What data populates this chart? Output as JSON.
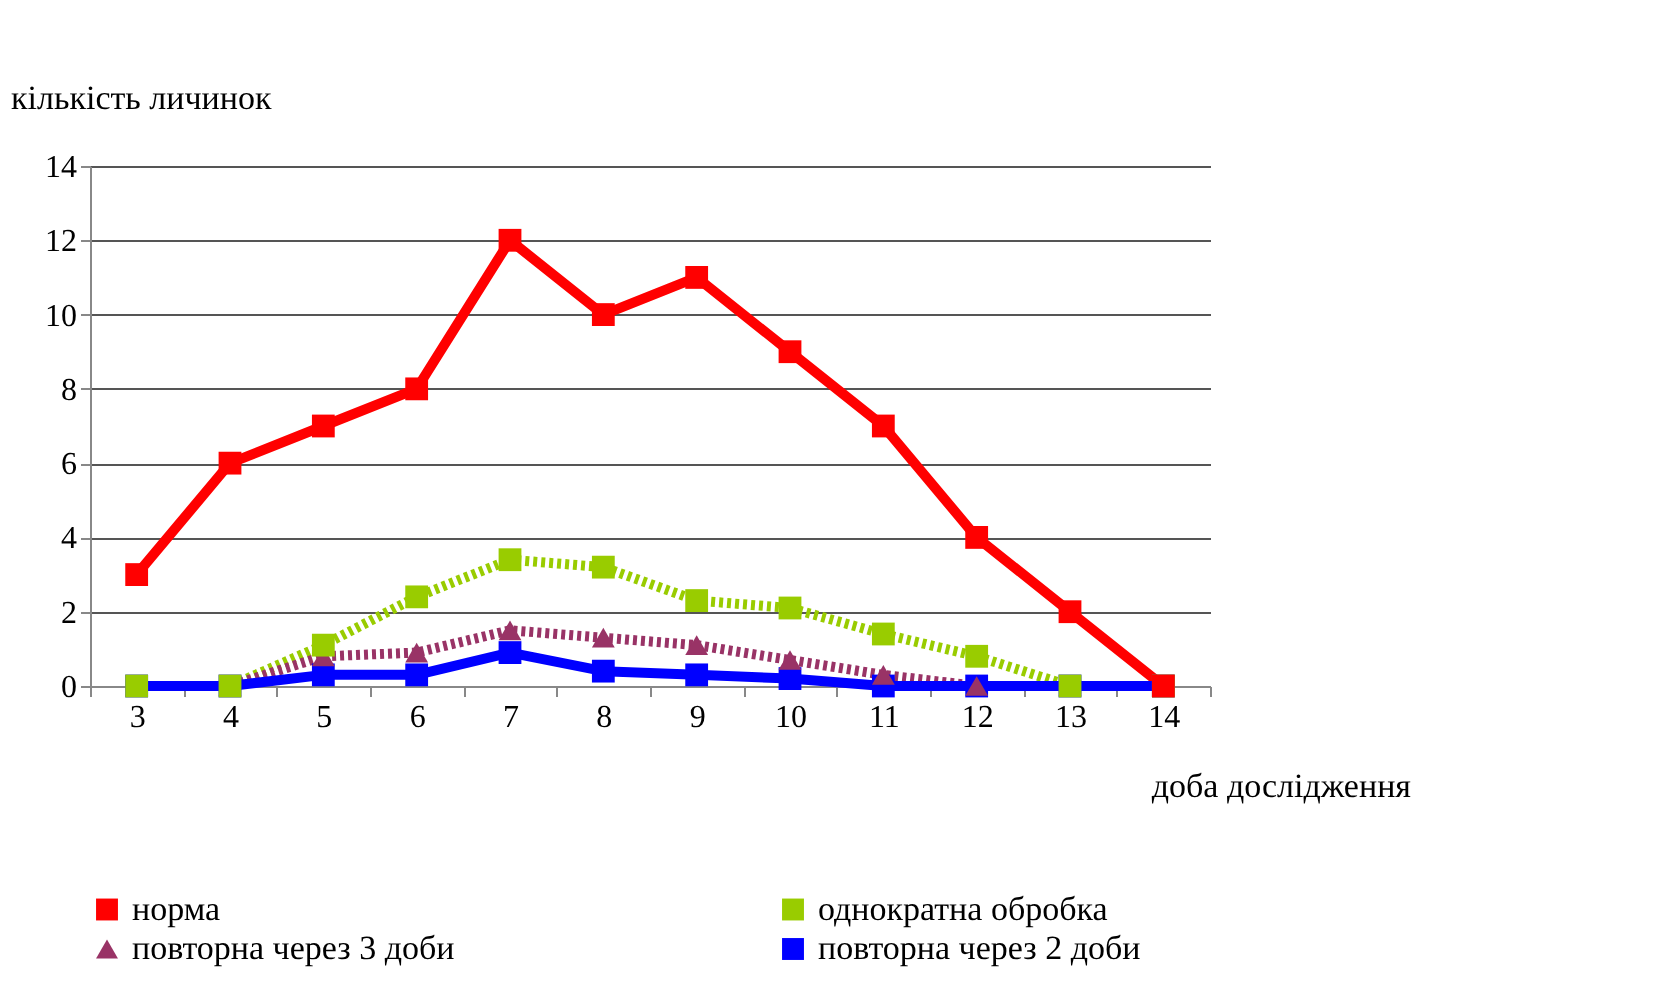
{
  "chart_data": {
    "type": "line",
    "xlabel": "доба дослідження",
    "ylabel": "кількість личинок",
    "categories": [
      "3",
      "4",
      "5",
      "6",
      "7",
      "8",
      "9",
      "10",
      "11",
      "12",
      "13",
      "14"
    ],
    "series": [
      {
        "name": "норма",
        "color": "#ff0000",
        "marker": "square",
        "line_style": "solid",
        "values": [
          3,
          6,
          7,
          8,
          12,
          10,
          11,
          9,
          7,
          4,
          2,
          0
        ]
      },
      {
        "name": "однократна обробка",
        "color": "#99cc00",
        "marker": "square",
        "line_style": "dotted",
        "values": [
          0,
          0,
          1.1,
          2.4,
          3.4,
          3.2,
          2.3,
          2.1,
          1.4,
          0.8,
          0,
          0
        ]
      },
      {
        "name": "повторна через 3 доби",
        "color": "#993366",
        "marker": "triangle",
        "line_style": "dotted",
        "values": [
          0,
          0,
          0.8,
          0.9,
          1.5,
          1.3,
          1.1,
          0.7,
          0.3,
          0,
          0,
          0
        ]
      },
      {
        "name": "повторна через 2 доби",
        "color": "#0000ff",
        "marker": "square",
        "line_style": "solid",
        "values": [
          0,
          0,
          0.3,
          0.3,
          0.9,
          0.4,
          0.3,
          0.2,
          0,
          0,
          0,
          0
        ]
      }
    ],
    "ylim": [
      0,
      14
    ],
    "yticks": [
      0,
      2,
      4,
      6,
      8,
      10,
      12,
      14
    ],
    "grid": "y",
    "legend": "bottom"
  }
}
